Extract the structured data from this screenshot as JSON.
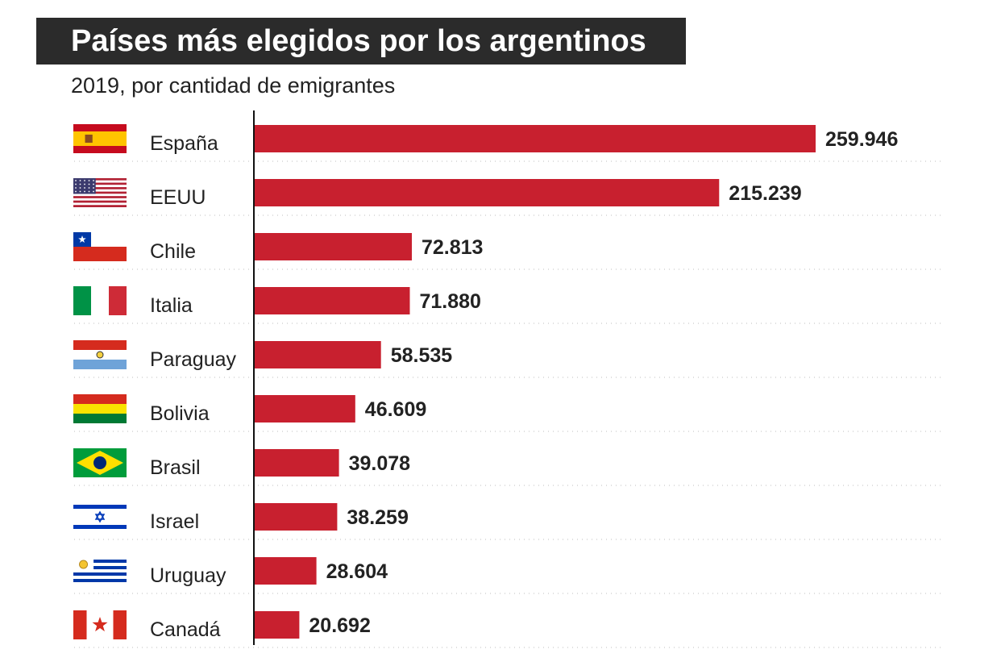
{
  "header": {
    "title": "Países más elegidos por los argentinos",
    "subtitle": "2019, por cantidad de emigrantes"
  },
  "colors": {
    "bar": "#c8202f",
    "title_background": "#2b2b2b",
    "axis": "#111111",
    "gridline": "#bdbdbd"
  },
  "chart_data": {
    "type": "bar",
    "orientation": "horizontal",
    "title": "Países más elegidos por los argentinos",
    "subtitle": "2019, por cantidad de emigrantes",
    "xlabel": "",
    "ylabel": "",
    "xlim": [
      0,
      300000
    ],
    "grid": true,
    "legend": "none",
    "categories": [
      "España",
      "EEUU",
      "Chile",
      "Italia",
      "Paraguay",
      "Bolivia",
      "Brasil",
      "Israel",
      "Uruguay",
      "Canadá"
    ],
    "values": [
      259946,
      215239,
      72813,
      71880,
      58535,
      46609,
      39078,
      38259,
      28604,
      20692
    ],
    "value_labels": [
      "259.946",
      "215.239",
      "72.813",
      "71.880",
      "58.535",
      "46.609",
      "39.078",
      "38.259",
      "28.604",
      "20.692"
    ],
    "flag_icons": [
      "spain-flag-icon",
      "usa-flag-icon",
      "chile-flag-icon",
      "italy-flag-icon",
      "paraguay-flag-icon",
      "bolivia-flag-icon",
      "brazil-flag-icon",
      "israel-flag-icon",
      "uruguay-flag-icon",
      "canada-flag-icon"
    ]
  }
}
